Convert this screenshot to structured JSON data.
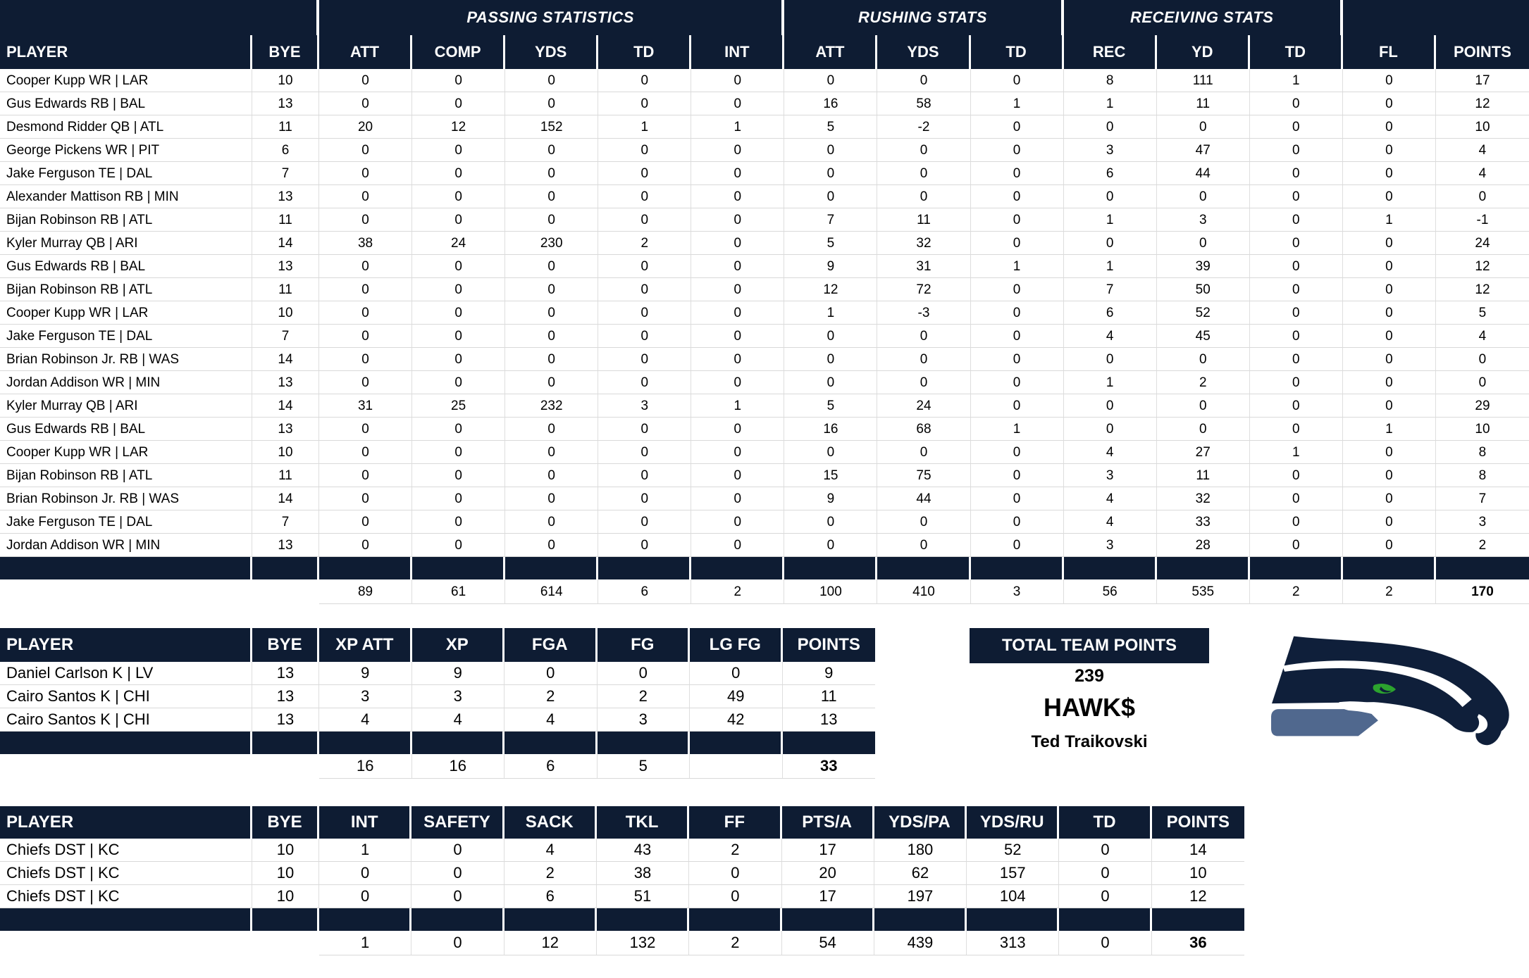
{
  "colors": {
    "header_navy": "#0e1c33",
    "logo_navy": "#0f1f3a",
    "logo_slate": "#50688e",
    "logo_green": "#2ca32e",
    "grid_line": "#d9d9d9"
  },
  "tables": {
    "offense": {
      "group_headers": [
        {
          "label": "",
          "span": 2
        },
        {
          "label": "PASSING STATISTICS",
          "span": 5
        },
        {
          "label": "RUSHING STATS",
          "span": 3
        },
        {
          "label": "RECEIVING STATS",
          "span": 3
        },
        {
          "label": "",
          "span": 2
        }
      ],
      "columns": [
        "PLAYER",
        "BYE",
        "ATT",
        "COMP",
        "YDS",
        "TD",
        "INT",
        "ATT",
        "YDS",
        "TD",
        "REC",
        "YD",
        "TD",
        "FL",
        "POINTS"
      ],
      "rows": [
        [
          "Cooper Kupp WR | LAR",
          "10",
          "0",
          "0",
          "0",
          "0",
          "0",
          "0",
          "0",
          "0",
          "8",
          "111",
          "1",
          "0",
          "17"
        ],
        [
          "Gus Edwards RB | BAL",
          "13",
          "0",
          "0",
          "0",
          "0",
          "0",
          "16",
          "58",
          "1",
          "1",
          "11",
          "0",
          "0",
          "12"
        ],
        [
          "Desmond Ridder QB | ATL",
          "11",
          "20",
          "12",
          "152",
          "1",
          "1",
          "5",
          "-2",
          "0",
          "0",
          "0",
          "0",
          "0",
          "10"
        ],
        [
          "George Pickens WR | PIT",
          "6",
          "0",
          "0",
          "0",
          "0",
          "0",
          "0",
          "0",
          "0",
          "3",
          "47",
          "0",
          "0",
          "4"
        ],
        [
          "Jake Ferguson TE | DAL",
          "7",
          "0",
          "0",
          "0",
          "0",
          "0",
          "0",
          "0",
          "0",
          "6",
          "44",
          "0",
          "0",
          "4"
        ],
        [
          "Alexander Mattison RB | MIN",
          "13",
          "0",
          "0",
          "0",
          "0",
          "0",
          "0",
          "0",
          "0",
          "0",
          "0",
          "0",
          "0",
          "0"
        ],
        [
          "Bijan Robinson RB | ATL",
          "11",
          "0",
          "0",
          "0",
          "0",
          "0",
          "7",
          "11",
          "0",
          "1",
          "3",
          "0",
          "1",
          "-1"
        ],
        [
          "Kyler Murray QB | ARI",
          "14",
          "38",
          "24",
          "230",
          "2",
          "0",
          "5",
          "32",
          "0",
          "0",
          "0",
          "0",
          "0",
          "24"
        ],
        [
          "Gus Edwards RB | BAL",
          "13",
          "0",
          "0",
          "0",
          "0",
          "0",
          "9",
          "31",
          "1",
          "1",
          "39",
          "0",
          "0",
          "12"
        ],
        [
          "Bijan Robinson RB | ATL",
          "11",
          "0",
          "0",
          "0",
          "0",
          "0",
          "12",
          "72",
          "0",
          "7",
          "50",
          "0",
          "0",
          "12"
        ],
        [
          "Cooper Kupp WR | LAR",
          "10",
          "0",
          "0",
          "0",
          "0",
          "0",
          "1",
          "-3",
          "0",
          "6",
          "52",
          "0",
          "0",
          "5"
        ],
        [
          "Jake Ferguson TE | DAL",
          "7",
          "0",
          "0",
          "0",
          "0",
          "0",
          "0",
          "0",
          "0",
          "4",
          "45",
          "0",
          "0",
          "4"
        ],
        [
          "Brian Robinson Jr. RB | WAS",
          "14",
          "0",
          "0",
          "0",
          "0",
          "0",
          "0",
          "0",
          "0",
          "0",
          "0",
          "0",
          "0",
          "0"
        ],
        [
          "Jordan Addison WR | MIN",
          "13",
          "0",
          "0",
          "0",
          "0",
          "0",
          "0",
          "0",
          "0",
          "1",
          "2",
          "0",
          "0",
          "0"
        ],
        [
          "Kyler Murray QB | ARI",
          "14",
          "31",
          "25",
          "232",
          "3",
          "1",
          "5",
          "24",
          "0",
          "0",
          "0",
          "0",
          "0",
          "29"
        ],
        [
          "Gus Edwards RB | BAL",
          "13",
          "0",
          "0",
          "0",
          "0",
          "0",
          "16",
          "68",
          "1",
          "0",
          "0",
          "0",
          "1",
          "10"
        ],
        [
          "Cooper Kupp WR | LAR",
          "10",
          "0",
          "0",
          "0",
          "0",
          "0",
          "0",
          "0",
          "0",
          "4",
          "27",
          "1",
          "0",
          "8"
        ],
        [
          "Bijan Robinson RB | ATL",
          "11",
          "0",
          "0",
          "0",
          "0",
          "0",
          "15",
          "75",
          "0",
          "3",
          "11",
          "0",
          "0",
          "8"
        ],
        [
          "Brian Robinson Jr. RB | WAS",
          "14",
          "0",
          "0",
          "0",
          "0",
          "0",
          "9",
          "44",
          "0",
          "4",
          "32",
          "0",
          "0",
          "7"
        ],
        [
          "Jake Ferguson TE | DAL",
          "7",
          "0",
          "0",
          "0",
          "0",
          "0",
          "0",
          "0",
          "0",
          "4",
          "33",
          "0",
          "0",
          "3"
        ],
        [
          "Jordan Addison WR | MIN",
          "13",
          "0",
          "0",
          "0",
          "0",
          "0",
          "0",
          "0",
          "0",
          "3",
          "28",
          "0",
          "0",
          "2"
        ]
      ],
      "totals": [
        "",
        "",
        "89",
        "61",
        "614",
        "6",
        "2",
        "100",
        "410",
        "3",
        "56",
        "535",
        "2",
        "2",
        "170"
      ]
    },
    "kickers": {
      "columns": [
        "PLAYER",
        "BYE",
        "XP ATT",
        "XP",
        "FGA",
        "FG",
        "LG FG",
        "POINTS"
      ],
      "rows": [
        [
          "Daniel Carlson K | LV",
          "13",
          "9",
          "9",
          "0",
          "0",
          "0",
          "9"
        ],
        [
          "Cairo Santos K | CHI",
          "13",
          "3",
          "3",
          "2",
          "2",
          "49",
          "11"
        ],
        [
          "Cairo Santos K | CHI",
          "13",
          "4",
          "4",
          "4",
          "3",
          "42",
          "13"
        ]
      ],
      "totals": [
        "",
        "",
        "16",
        "16",
        "6",
        "5",
        "",
        "33"
      ]
    },
    "defense": {
      "columns": [
        "PLAYER",
        "BYE",
        "INT",
        "SAFETY",
        "SACK",
        "TKL",
        "FF",
        "PTS/A",
        "YDS/PA",
        "YDS/RU",
        "TD",
        "POINTS"
      ],
      "rows": [
        [
          "Chiefs DST | KC",
          "10",
          "1",
          "0",
          "4",
          "43",
          "2",
          "17",
          "180",
          "52",
          "0",
          "14"
        ],
        [
          "Chiefs DST | KC",
          "10",
          "0",
          "0",
          "2",
          "38",
          "0",
          "20",
          "62",
          "157",
          "0",
          "10"
        ],
        [
          "Chiefs DST | KC",
          "10",
          "0",
          "0",
          "6",
          "51",
          "0",
          "17",
          "197",
          "104",
          "0",
          "12"
        ]
      ],
      "totals": [
        "",
        "",
        "1",
        "0",
        "12",
        "132",
        "2",
        "54",
        "439",
        "313",
        "0",
        "36"
      ]
    }
  },
  "summary": {
    "title": "TOTAL TEAM POINTS",
    "points": "239",
    "team_name": "HAWK$",
    "owner": "Ted Traikovski"
  },
  "logo": {
    "name": "seattle-seahawks-logo"
  }
}
